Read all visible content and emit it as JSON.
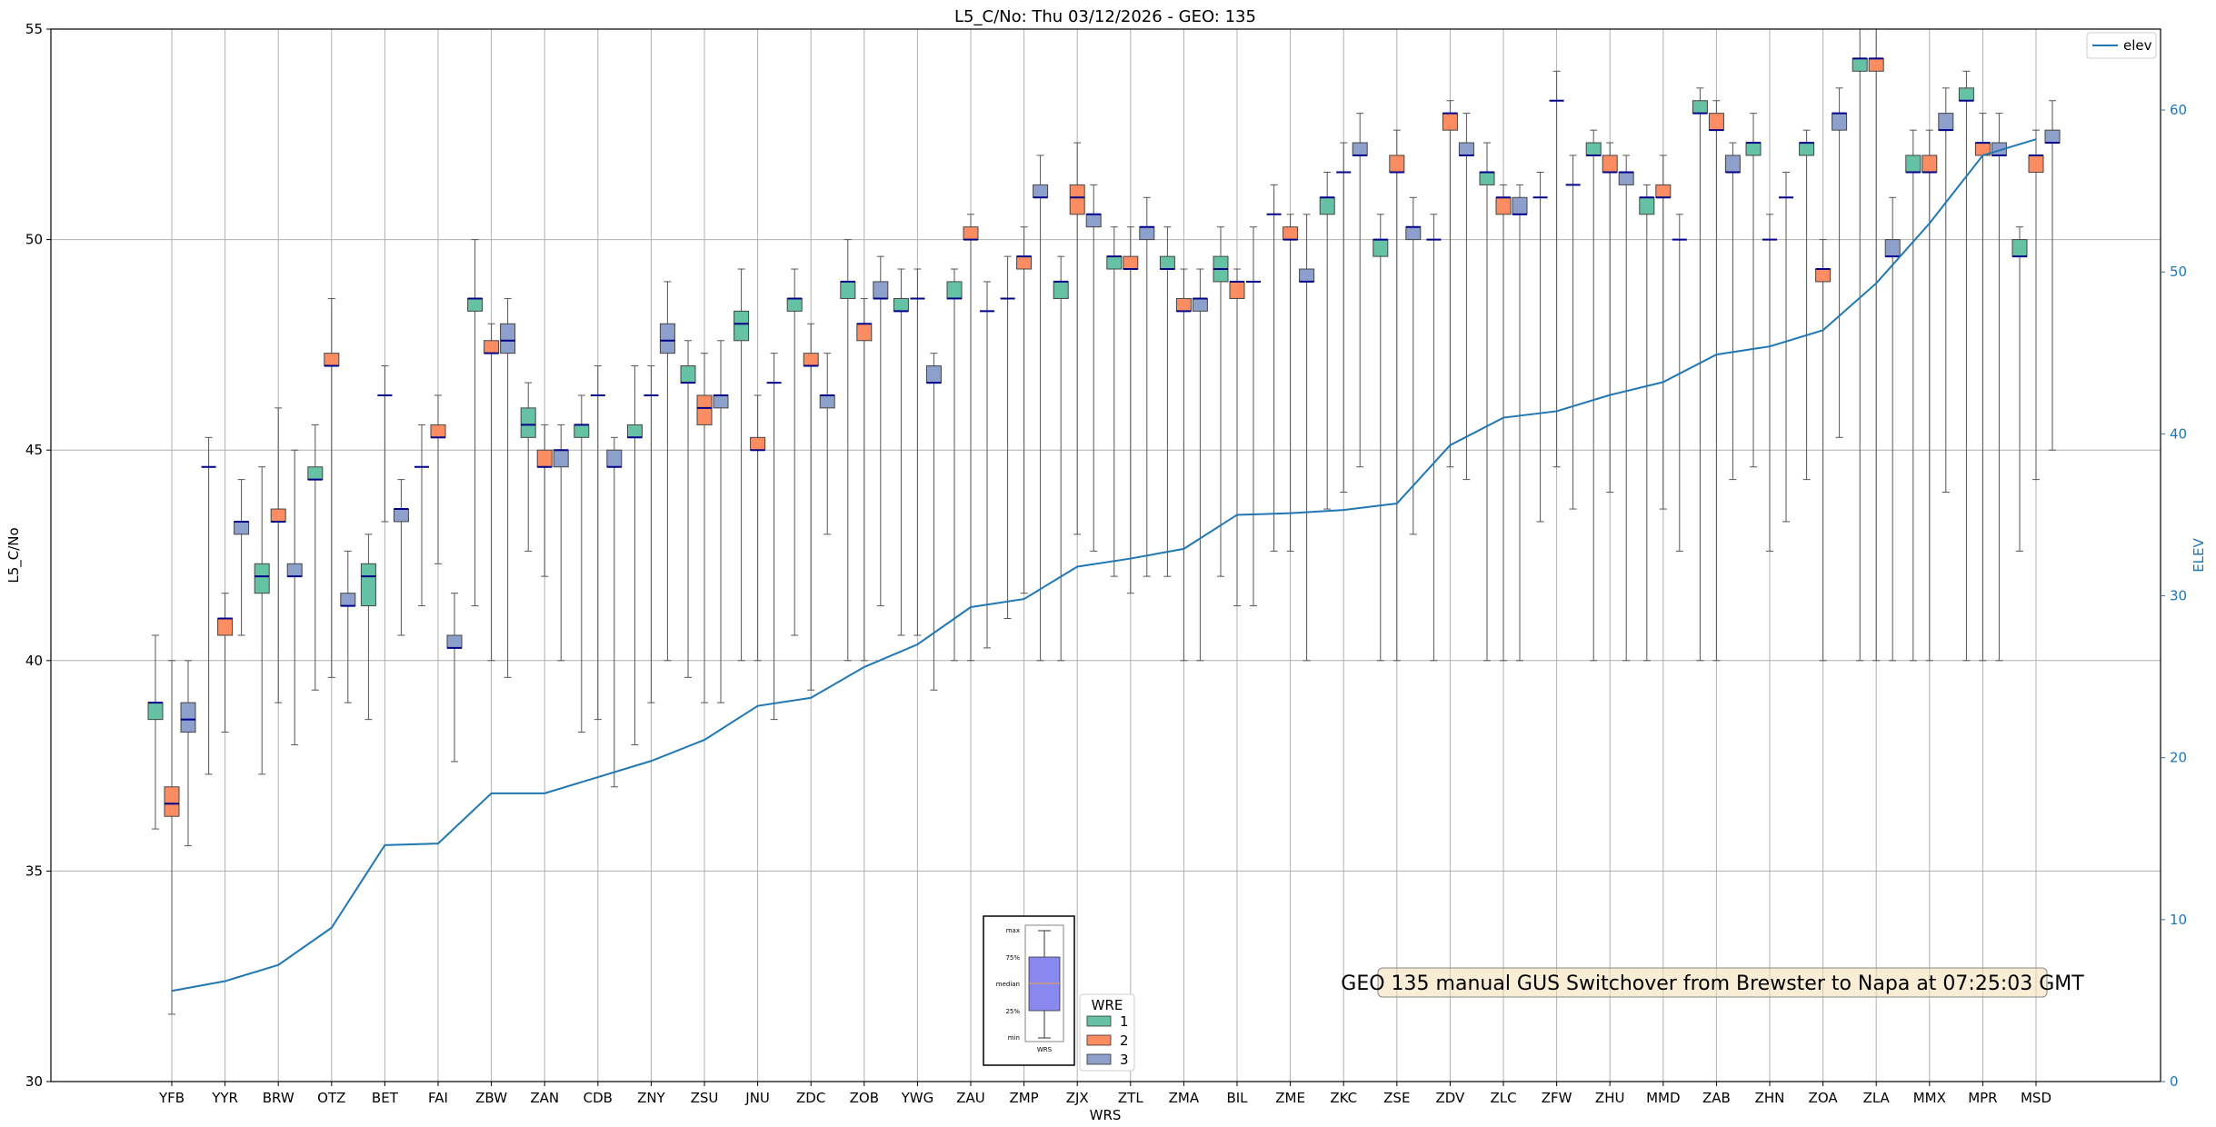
{
  "chart_data": {
    "type": "box",
    "title": "L5_C/No: Thu 03/12/2026 - GEO: 135",
    "xlabel": "WRS",
    "ylabel": "L5_C/No",
    "ylabel_right": "ELEV",
    "ylim": [
      30,
      55
    ],
    "ylim_right": [
      0,
      65
    ],
    "yticks": [
      30,
      35,
      40,
      45,
      50,
      55
    ],
    "yticks_right": [
      0,
      10,
      20,
      30,
      40,
      50,
      60
    ],
    "grid": true,
    "colors": {
      "1": "#66c2a5",
      "2": "#fc8d62",
      "3": "#8da0cb",
      "elev": "#1f77b4",
      "median": "#00008b"
    },
    "elev_legend": {
      "label": "elev",
      "placement": "top-right"
    },
    "wre_legend": {
      "title": "WRE",
      "labels": [
        "1",
        "2",
        "3"
      ],
      "placement": "lower-center"
    },
    "annotation": "GEO 135 manual GUS Switchover from Brewster to Napa at 07:25:03 GMT",
    "inset_key": {
      "labels": [
        "max",
        "75%",
        "median",
        "25%",
        "min"
      ],
      "xlabel": "WRS"
    },
    "categories": [
      "YFB",
      "YYR",
      "BRW",
      "OTZ",
      "BET",
      "FAI",
      "ZBW",
      "ZAN",
      "CDB",
      "ZNY",
      "ZSU",
      "JNU",
      "ZDC",
      "ZOB",
      "YWG",
      "ZAU",
      "ZMP",
      "ZJX",
      "ZTL",
      "ZMA",
      "BIL",
      "ZME",
      "ZKC",
      "ZSE",
      "ZDV",
      "ZLC",
      "ZFW",
      "ZHU",
      "MMD",
      "ZAB",
      "ZHN",
      "ZOA",
      "ZLA",
      "MMX",
      "MPR",
      "MSD"
    ],
    "elev": [
      5.6,
      6.2,
      7.2,
      9.5,
      14.6,
      14.7,
      17.8,
      17.8,
      18.8,
      19.8,
      21.1,
      23.2,
      23.7,
      25.6,
      27.0,
      29.3,
      29.8,
      31.8,
      32.3,
      32.9,
      35.0,
      35.1,
      35.3,
      35.7,
      39.3,
      41.0,
      41.4,
      42.4,
      43.2,
      44.9,
      45.4,
      46.4,
      49.3,
      53.0,
      57.2,
      58.2
    ],
    "boxes": [
      {
        "cat": 0,
        "wre": 1,
        "min": 36.0,
        "q1": 38.6,
        "med": 39.0,
        "q3": 39.0,
        "max": 40.6
      },
      {
        "cat": 0,
        "wre": 2,
        "min": 31.6,
        "q1": 36.3,
        "med": 36.6,
        "q3": 37.0,
        "max": 40.0
      },
      {
        "cat": 0,
        "wre": 3,
        "min": 35.6,
        "q1": 38.3,
        "med": 38.6,
        "q3": 39.0,
        "max": 40.0
      },
      {
        "cat": 1,
        "wre": 1,
        "min": 37.3,
        "q1": 44.6,
        "med": 44.6,
        "q3": 44.6,
        "max": 45.3
      },
      {
        "cat": 1,
        "wre": 2,
        "min": 38.3,
        "q1": 40.6,
        "med": 41.0,
        "q3": 41.0,
        "max": 41.6
      },
      {
        "cat": 1,
        "wre": 3,
        "min": 40.6,
        "q1": 43.0,
        "med": 43.3,
        "q3": 43.3,
        "max": 44.3
      },
      {
        "cat": 2,
        "wre": 1,
        "min": 37.3,
        "q1": 41.6,
        "med": 42.0,
        "q3": 42.3,
        "max": 44.6
      },
      {
        "cat": 2,
        "wre": 2,
        "min": 39.0,
        "q1": 43.3,
        "med": 43.3,
        "q3": 43.6,
        "max": 46.0
      },
      {
        "cat": 2,
        "wre": 3,
        "min": 38.0,
        "q1": 42.0,
        "med": 42.0,
        "q3": 42.3,
        "max": 45.0
      },
      {
        "cat": 3,
        "wre": 1,
        "min": 39.3,
        "q1": 44.3,
        "med": 44.3,
        "q3": 44.6,
        "max": 45.6
      },
      {
        "cat": 3,
        "wre": 2,
        "min": 39.6,
        "q1": 47.0,
        "med": 47.0,
        "q3": 47.3,
        "max": 48.6
      },
      {
        "cat": 3,
        "wre": 3,
        "min": 39.0,
        "q1": 41.3,
        "med": 41.3,
        "q3": 41.6,
        "max": 42.6
      },
      {
        "cat": 4,
        "wre": 1,
        "min": 38.6,
        "q1": 41.3,
        "med": 42.0,
        "q3": 42.3,
        "max": 43.0
      },
      {
        "cat": 4,
        "wre": 2,
        "min": 43.3,
        "q1": 46.3,
        "med": 46.3,
        "q3": 46.3,
        "max": 47.0
      },
      {
        "cat": 4,
        "wre": 3,
        "min": 40.6,
        "q1": 43.3,
        "med": 43.6,
        "q3": 43.6,
        "max": 44.3
      },
      {
        "cat": 5,
        "wre": 1,
        "min": 41.3,
        "q1": 44.6,
        "med": 44.6,
        "q3": 44.6,
        "max": 45.6
      },
      {
        "cat": 5,
        "wre": 2,
        "min": 42.3,
        "q1": 45.3,
        "med": 45.3,
        "q3": 45.6,
        "max": 46.3
      },
      {
        "cat": 5,
        "wre": 3,
        "min": 37.6,
        "q1": 40.3,
        "med": 40.3,
        "q3": 40.6,
        "max": 41.6
      },
      {
        "cat": 6,
        "wre": 1,
        "min": 41.3,
        "q1": 48.3,
        "med": 48.6,
        "q3": 48.6,
        "max": 50.0
      },
      {
        "cat": 6,
        "wre": 2,
        "min": 40.0,
        "q1": 47.3,
        "med": 47.3,
        "q3": 47.6,
        "max": 48.0
      },
      {
        "cat": 6,
        "wre": 3,
        "min": 39.6,
        "q1": 47.3,
        "med": 47.6,
        "q3": 48.0,
        "max": 48.6
      },
      {
        "cat": 7,
        "wre": 1,
        "min": 42.6,
        "q1": 45.3,
        "med": 45.6,
        "q3": 46.0,
        "max": 46.6
      },
      {
        "cat": 7,
        "wre": 2,
        "min": 42.0,
        "q1": 44.6,
        "med": 44.6,
        "q3": 45.0,
        "max": 45.6
      },
      {
        "cat": 7,
        "wre": 3,
        "min": 40.0,
        "q1": 44.6,
        "med": 45.0,
        "q3": 45.0,
        "max": 45.6
      },
      {
        "cat": 8,
        "wre": 1,
        "min": 38.3,
        "q1": 45.3,
        "med": 45.6,
        "q3": 45.6,
        "max": 46.3
      },
      {
        "cat": 8,
        "wre": 2,
        "min": 38.6,
        "q1": 46.3,
        "med": 46.3,
        "q3": 46.3,
        "max": 47.0
      },
      {
        "cat": 8,
        "wre": 3,
        "min": 37.0,
        "q1": 44.6,
        "med": 44.6,
        "q3": 45.0,
        "max": 45.3
      },
      {
        "cat": 9,
        "wre": 1,
        "min": 38.0,
        "q1": 45.3,
        "med": 45.3,
        "q3": 45.6,
        "max": 47.0
      },
      {
        "cat": 9,
        "wre": 2,
        "min": 39.0,
        "q1": 46.3,
        "med": 46.3,
        "q3": 46.3,
        "max": 47.0
      },
      {
        "cat": 9,
        "wre": 3,
        "min": 40.0,
        "q1": 47.3,
        "med": 47.6,
        "q3": 48.0,
        "max": 49.0
      },
      {
        "cat": 10,
        "wre": 1,
        "min": 39.6,
        "q1": 46.6,
        "med": 46.6,
        "q3": 47.0,
        "max": 47.6
      },
      {
        "cat": 10,
        "wre": 2,
        "min": 39.0,
        "q1": 45.6,
        "med": 46.0,
        "q3": 46.3,
        "max": 47.3
      },
      {
        "cat": 10,
        "wre": 3,
        "min": 39.0,
        "q1": 46.0,
        "med": 46.3,
        "q3": 46.3,
        "max": 47.6
      },
      {
        "cat": 11,
        "wre": 1,
        "min": 40.0,
        "q1": 47.6,
        "med": 48.0,
        "q3": 48.3,
        "max": 49.3
      },
      {
        "cat": 11,
        "wre": 2,
        "min": 40.0,
        "q1": 45.0,
        "med": 45.0,
        "q3": 45.3,
        "max": 46.3
      },
      {
        "cat": 11,
        "wre": 3,
        "min": 38.6,
        "q1": 46.6,
        "med": 46.6,
        "q3": 46.6,
        "max": 47.3
      },
      {
        "cat": 12,
        "wre": 1,
        "min": 40.6,
        "q1": 48.3,
        "med": 48.6,
        "q3": 48.6,
        "max": 49.3
      },
      {
        "cat": 12,
        "wre": 2,
        "min": 39.3,
        "q1": 47.0,
        "med": 47.0,
        "q3": 47.3,
        "max": 48.0
      },
      {
        "cat": 12,
        "wre": 3,
        "min": 43.0,
        "q1": 46.0,
        "med": 46.3,
        "q3": 46.3,
        "max": 47.3
      },
      {
        "cat": 13,
        "wre": 1,
        "min": 40.0,
        "q1": 48.6,
        "med": 49.0,
        "q3": 49.0,
        "max": 50.0
      },
      {
        "cat": 13,
        "wre": 2,
        "min": 40.0,
        "q1": 47.6,
        "med": 48.0,
        "q3": 48.0,
        "max": 48.6
      },
      {
        "cat": 13,
        "wre": 3,
        "min": 41.3,
        "q1": 48.6,
        "med": 48.6,
        "q3": 49.0,
        "max": 49.6
      },
      {
        "cat": 14,
        "wre": 1,
        "min": 40.6,
        "q1": 48.3,
        "med": 48.3,
        "q3": 48.6,
        "max": 49.3
      },
      {
        "cat": 14,
        "wre": 2,
        "min": 40.6,
        "q1": 48.6,
        "med": 48.6,
        "q3": 48.6,
        "max": 49.3
      },
      {
        "cat": 14,
        "wre": 3,
        "min": 39.3,
        "q1": 46.6,
        "med": 46.6,
        "q3": 47.0,
        "max": 47.3
      },
      {
        "cat": 15,
        "wre": 1,
        "min": 40.0,
        "q1": 48.6,
        "med": 48.6,
        "q3": 49.0,
        "max": 49.3
      },
      {
        "cat": 15,
        "wre": 2,
        "min": 40.0,
        "q1": 50.0,
        "med": 50.0,
        "q3": 50.3,
        "max": 50.6
      },
      {
        "cat": 15,
        "wre": 3,
        "min": 40.3,
        "q1": 48.3,
        "med": 48.3,
        "q3": 48.3,
        "max": 49.0
      },
      {
        "cat": 16,
        "wre": 1,
        "min": 41.0,
        "q1": 48.6,
        "med": 48.6,
        "q3": 48.6,
        "max": 49.6
      },
      {
        "cat": 16,
        "wre": 2,
        "min": 41.6,
        "q1": 49.3,
        "med": 49.6,
        "q3": 49.6,
        "max": 50.3
      },
      {
        "cat": 16,
        "wre": 3,
        "min": 40.0,
        "q1": 51.0,
        "med": 51.0,
        "q3": 51.3,
        "max": 52.0
      },
      {
        "cat": 17,
        "wre": 1,
        "min": 40.0,
        "q1": 48.6,
        "med": 49.0,
        "q3": 49.0,
        "max": 49.6
      },
      {
        "cat": 17,
        "wre": 2,
        "min": 43.0,
        "q1": 50.6,
        "med": 51.0,
        "q3": 51.3,
        "max": 52.3
      },
      {
        "cat": 17,
        "wre": 3,
        "min": 42.6,
        "q1": 50.3,
        "med": 50.6,
        "q3": 50.6,
        "max": 51.3
      },
      {
        "cat": 18,
        "wre": 1,
        "min": 42.0,
        "q1": 49.3,
        "med": 49.6,
        "q3": 49.6,
        "max": 50.3
      },
      {
        "cat": 18,
        "wre": 2,
        "min": 41.6,
        "q1": 49.3,
        "med": 49.3,
        "q3": 49.6,
        "max": 50.3
      },
      {
        "cat": 18,
        "wre": 3,
        "min": 42.0,
        "q1": 50.0,
        "med": 50.3,
        "q3": 50.3,
        "max": 51.0
      },
      {
        "cat": 19,
        "wre": 1,
        "min": 42.0,
        "q1": 49.3,
        "med": 49.3,
        "q3": 49.6,
        "max": 50.3
      },
      {
        "cat": 19,
        "wre": 2,
        "min": 40.0,
        "q1": 48.3,
        "med": 48.3,
        "q3": 48.6,
        "max": 49.3
      },
      {
        "cat": 19,
        "wre": 3,
        "min": 40.0,
        "q1": 48.3,
        "med": 48.6,
        "q3": 48.6,
        "max": 49.3
      },
      {
        "cat": 20,
        "wre": 1,
        "min": 42.0,
        "q1": 49.0,
        "med": 49.3,
        "q3": 49.6,
        "max": 50.3
      },
      {
        "cat": 20,
        "wre": 2,
        "min": 41.3,
        "q1": 48.6,
        "med": 49.0,
        "q3": 49.0,
        "max": 49.3
      },
      {
        "cat": 20,
        "wre": 3,
        "min": 41.3,
        "q1": 49.0,
        "med": 49.0,
        "q3": 49.0,
        "max": 50.3
      },
      {
        "cat": 21,
        "wre": 1,
        "min": 42.6,
        "q1": 50.6,
        "med": 50.6,
        "q3": 50.6,
        "max": 51.3
      },
      {
        "cat": 21,
        "wre": 2,
        "min": 42.6,
        "q1": 50.0,
        "med": 50.0,
        "q3": 50.3,
        "max": 50.6
      },
      {
        "cat": 21,
        "wre": 3,
        "min": 40.0,
        "q1": 49.0,
        "med": 49.0,
        "q3": 49.3,
        "max": 50.6
      },
      {
        "cat": 22,
        "wre": 1,
        "min": 43.6,
        "q1": 50.6,
        "med": 51.0,
        "q3": 51.0,
        "max": 51.6
      },
      {
        "cat": 22,
        "wre": 2,
        "min": 44.0,
        "q1": 51.6,
        "med": 51.6,
        "q3": 51.6,
        "max": 52.3
      },
      {
        "cat": 22,
        "wre": 3,
        "min": 44.6,
        "q1": 52.0,
        "med": 52.0,
        "q3": 52.3,
        "max": 53.0
      },
      {
        "cat": 23,
        "wre": 1,
        "min": 40.0,
        "q1": 49.6,
        "med": 50.0,
        "q3": 50.0,
        "max": 50.6
      },
      {
        "cat": 23,
        "wre": 2,
        "min": 40.0,
        "q1": 51.6,
        "med": 51.6,
        "q3": 52.0,
        "max": 52.6
      },
      {
        "cat": 23,
        "wre": 3,
        "min": 43.0,
        "q1": 50.0,
        "med": 50.3,
        "q3": 50.3,
        "max": 51.0
      },
      {
        "cat": 24,
        "wre": 1,
        "min": 40.0,
        "q1": 50.0,
        "med": 50.0,
        "q3": 50.0,
        "max": 50.6
      },
      {
        "cat": 24,
        "wre": 2,
        "min": 44.6,
        "q1": 52.6,
        "med": 53.0,
        "q3": 53.0,
        "max": 53.3
      },
      {
        "cat": 24,
        "wre": 3,
        "min": 44.3,
        "q1": 52.0,
        "med": 52.0,
        "q3": 52.3,
        "max": 53.0
      },
      {
        "cat": 25,
        "wre": 1,
        "min": 40.0,
        "q1": 51.3,
        "med": 51.6,
        "q3": 51.6,
        "max": 52.3
      },
      {
        "cat": 25,
        "wre": 2,
        "min": 40.0,
        "q1": 50.6,
        "med": 51.0,
        "q3": 51.0,
        "max": 51.3
      },
      {
        "cat": 25,
        "wre": 3,
        "min": 40.0,
        "q1": 50.6,
        "med": 50.6,
        "q3": 51.0,
        "max": 51.3
      },
      {
        "cat": 26,
        "wre": 1,
        "min": 43.3,
        "q1": 51.0,
        "med": 51.0,
        "q3": 51.0,
        "max": 51.6
      },
      {
        "cat": 26,
        "wre": 2,
        "min": 44.6,
        "q1": 53.3,
        "med": 53.3,
        "q3": 53.3,
        "max": 54.0
      },
      {
        "cat": 26,
        "wre": 3,
        "min": 43.6,
        "q1": 51.3,
        "med": 51.3,
        "q3": 51.3,
        "max": 52.0
      },
      {
        "cat": 27,
        "wre": 1,
        "min": 40.0,
        "q1": 52.0,
        "med": 52.0,
        "q3": 52.3,
        "max": 52.6
      },
      {
        "cat": 27,
        "wre": 2,
        "min": 44.0,
        "q1": 51.6,
        "med": 51.6,
        "q3": 52.0,
        "max": 52.3
      },
      {
        "cat": 27,
        "wre": 3,
        "min": 40.0,
        "q1": 51.3,
        "med": 51.6,
        "q3": 51.6,
        "max": 52.0
      },
      {
        "cat": 28,
        "wre": 1,
        "min": 40.0,
        "q1": 50.6,
        "med": 51.0,
        "q3": 51.0,
        "max": 51.3
      },
      {
        "cat": 28,
        "wre": 2,
        "min": 43.6,
        "q1": 51.0,
        "med": 51.0,
        "q3": 51.3,
        "max": 52.0
      },
      {
        "cat": 28,
        "wre": 3,
        "min": 42.6,
        "q1": 50.0,
        "med": 50.0,
        "q3": 50.0,
        "max": 50.6
      },
      {
        "cat": 29,
        "wre": 1,
        "min": 40.0,
        "q1": 53.0,
        "med": 53.0,
        "q3": 53.3,
        "max": 53.6
      },
      {
        "cat": 29,
        "wre": 2,
        "min": 40.0,
        "q1": 52.6,
        "med": 52.6,
        "q3": 53.0,
        "max": 53.3
      },
      {
        "cat": 29,
        "wre": 3,
        "min": 44.3,
        "q1": 51.6,
        "med": 51.6,
        "q3": 52.0,
        "max": 52.3
      },
      {
        "cat": 30,
        "wre": 1,
        "min": 44.6,
        "q1": 52.0,
        "med": 52.3,
        "q3": 52.3,
        "max": 53.0
      },
      {
        "cat": 30,
        "wre": 2,
        "min": 42.6,
        "q1": 50.0,
        "med": 50.0,
        "q3": 50.0,
        "max": 50.6
      },
      {
        "cat": 30,
        "wre": 3,
        "min": 43.3,
        "q1": 51.0,
        "med": 51.0,
        "q3": 51.0,
        "max": 51.6
      },
      {
        "cat": 31,
        "wre": 1,
        "min": 44.3,
        "q1": 52.0,
        "med": 52.3,
        "q3": 52.3,
        "max": 52.6
      },
      {
        "cat": 31,
        "wre": 2,
        "min": 40.0,
        "q1": 49.0,
        "med": 49.3,
        "q3": 49.3,
        "max": 50.0
      },
      {
        "cat": 31,
        "wre": 3,
        "min": 45.3,
        "q1": 52.6,
        "med": 53.0,
        "q3": 53.0,
        "max": 53.6
      },
      {
        "cat": 32,
        "wre": 1,
        "min": 40.0,
        "q1": 54.0,
        "med": 54.3,
        "q3": 54.3,
        "max": 55.0
      },
      {
        "cat": 32,
        "wre": 2,
        "min": 40.0,
        "q1": 54.0,
        "med": 54.3,
        "q3": 54.3,
        "max": 55.0
      },
      {
        "cat": 32,
        "wre": 3,
        "min": 40.0,
        "q1": 49.6,
        "med": 49.6,
        "q3": 50.0,
        "max": 51.0
      },
      {
        "cat": 33,
        "wre": 1,
        "min": 40.0,
        "q1": 51.6,
        "med": 51.6,
        "q3": 52.0,
        "max": 52.6
      },
      {
        "cat": 33,
        "wre": 2,
        "min": 40.0,
        "q1": 51.6,
        "med": 51.6,
        "q3": 52.0,
        "max": 52.6
      },
      {
        "cat": 33,
        "wre": 3,
        "min": 44.0,
        "q1": 52.6,
        "med": 52.6,
        "q3": 53.0,
        "max": 53.6
      },
      {
        "cat": 34,
        "wre": 1,
        "min": 40.0,
        "q1": 53.3,
        "med": 53.3,
        "q3": 53.6,
        "max": 54.0
      },
      {
        "cat": 34,
        "wre": 2,
        "min": 40.0,
        "q1": 52.0,
        "med": 52.3,
        "q3": 52.3,
        "max": 53.0
      },
      {
        "cat": 34,
        "wre": 3,
        "min": 40.0,
        "q1": 52.0,
        "med": 52.0,
        "q3": 52.3,
        "max": 53.0
      },
      {
        "cat": 35,
        "wre": 1,
        "min": 42.6,
        "q1": 49.6,
        "med": 49.6,
        "q3": 50.0,
        "max": 50.3
      },
      {
        "cat": 35,
        "wre": 2,
        "min": 44.3,
        "q1": 51.6,
        "med": 52.0,
        "q3": 52.0,
        "max": 52.6
      },
      {
        "cat": 35,
        "wre": 3,
        "min": 45.0,
        "q1": 52.3,
        "med": 52.3,
        "q3": 52.6,
        "max": 53.3
      }
    ]
  }
}
